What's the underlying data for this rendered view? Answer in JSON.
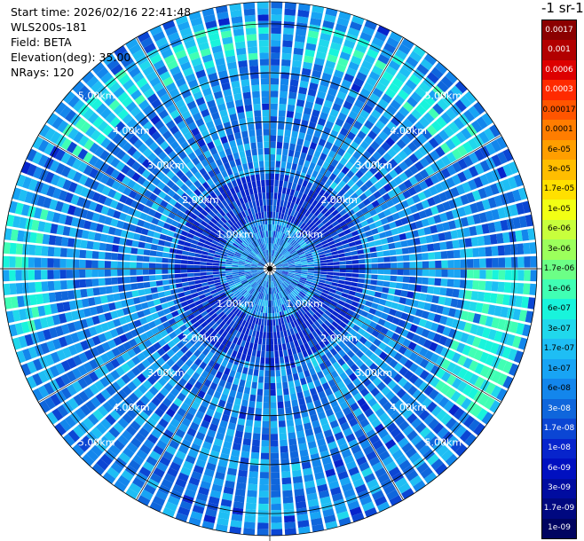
{
  "info": {
    "start_time": "Start time: 2026/02/16 22:41:48",
    "site": "WLS200s-181",
    "field": "Field: BETA",
    "elevation": "Elevation(deg): 35.00",
    "nrays": "NRays: 120"
  },
  "colorbar": {
    "unit_label": "-1 sr-1",
    "levels": [
      {
        "label": "0.0017",
        "color": "#8b0000"
      },
      {
        "label": "0.001",
        "color": "#b20000"
      },
      {
        "label": "0.0006",
        "color": "#dd0000"
      },
      {
        "label": "0.0003",
        "color": "#ff2a00"
      },
      {
        "label": "0.00017",
        "color": "#ff5500"
      },
      {
        "label": "0.0001",
        "color": "#ff7d00"
      },
      {
        "label": "6e-05",
        "color": "#ff9e00"
      },
      {
        "label": "3e-05",
        "color": "#ffbd00"
      },
      {
        "label": "1.7e-05",
        "color": "#ffe000"
      },
      {
        "label": "1e-05",
        "color": "#f2ff14"
      },
      {
        "label": "6e-06",
        "color": "#c8ff3c"
      },
      {
        "label": "3e-06",
        "color": "#9cff5c"
      },
      {
        "label": "1.7e-06",
        "color": "#6cff86"
      },
      {
        "label": "1e-06",
        "color": "#40ffb4"
      },
      {
        "label": "6e-07",
        "color": "#18f4dc"
      },
      {
        "label": "3e-07",
        "color": "#20d8ec"
      },
      {
        "label": "1.7e-07",
        "color": "#1ebef4"
      },
      {
        "label": "1e-07",
        "color": "#18a4f4"
      },
      {
        "label": "6e-08",
        "color": "#1386ec"
      },
      {
        "label": "3e-08",
        "color": "#0f66dc"
      },
      {
        "label": "1.7e-08",
        "color": "#0b46d4"
      },
      {
        "label": "1e-08",
        "color": "#0724cc"
      },
      {
        "label": "6e-09",
        "color": "#0010c0"
      },
      {
        "label": "3e-09",
        "color": "#000ca0"
      },
      {
        "label": "1.7e-09",
        "color": "#000880"
      },
      {
        "label": "1e-09",
        "color": "#000460"
      }
    ]
  },
  "chart_data": {
    "type": "heatmap",
    "projection": "polar-ppi",
    "field": "BETA",
    "elevation_deg": 35.0,
    "n_rays": 120,
    "range_rings_km": [
      1,
      2,
      3,
      4,
      5
    ],
    "ring_labels": [
      "1.00km",
      "2.00km",
      "3.00km",
      "4.00km",
      "5.00km"
    ],
    "max_range_km": 5.45,
    "spokes_deg": [
      0,
      30,
      60,
      90,
      120,
      150,
      180,
      210,
      240,
      270,
      300,
      330
    ],
    "color_scale": "log",
    "dominant_range": [
      3e-08,
      3e-07
    ],
    "background_value": 6e-08,
    "regions": [
      {
        "range_km": [
          1.0,
          1.9
        ],
        "value": 1e-08
      },
      {
        "range_km": [
          4.3,
          5.0
        ],
        "azimuth_deg": [
          300,
          360
        ],
        "value": 3e-07
      },
      {
        "range_km": [
          4.3,
          5.0
        ],
        "azimuth_deg": [
          10,
          60
        ],
        "value": 3e-07
      },
      {
        "range_km": [
          4.0,
          5.3
        ],
        "azimuth_deg": [
          90,
          125
        ],
        "value": 6e-07
      },
      {
        "range_km": [
          4.8,
          5.2
        ],
        "azimuth_deg": [
          110,
          118
        ],
        "value": 1.7e-06
      },
      {
        "range_km": [
          4.6,
          5.45
        ],
        "azimuth_deg": [
          255,
          285
        ],
        "value": 3e-07
      }
    ]
  }
}
